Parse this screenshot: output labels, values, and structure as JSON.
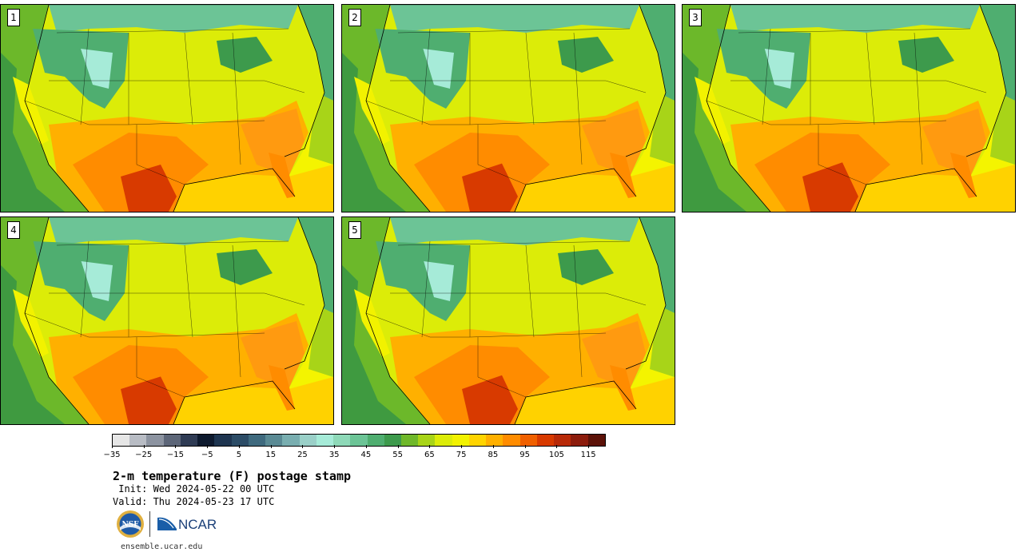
{
  "panels": [
    {
      "label": "1",
      "variant": 0.0
    },
    {
      "label": "2",
      "variant": 0.35
    },
    {
      "label": "3",
      "variant": 0.7
    },
    {
      "label": "4",
      "variant": 0.15
    },
    {
      "label": "5",
      "variant": 0.55
    }
  ],
  "colorbar": {
    "colors": [
      "#e6e6e6",
      "#b8bcc4",
      "#8c93a0",
      "#5d6678",
      "#2f3b54",
      "#0e1a2e",
      "#1e3550",
      "#2c4c66",
      "#3f6a7e",
      "#5a8a94",
      "#79aeb0",
      "#9ad0c8",
      "#a6ebd8",
      "#8ed9b8",
      "#6cc496",
      "#4fae70",
      "#3d9a4c",
      "#6fb82a",
      "#a8d418",
      "#dcec08",
      "#f2f200",
      "#ffd400",
      "#ffb000",
      "#ff8c00",
      "#f06000",
      "#d83a00",
      "#b82a08",
      "#8c1c0c",
      "#5c1208"
    ],
    "ticks": [
      "−35",
      "−25",
      "−15",
      "−5",
      "5",
      "15",
      "25",
      "35",
      "45",
      "55",
      "65",
      "75",
      "85",
      "95",
      "105",
      "115"
    ]
  },
  "title": "2-m temperature (F) postage stamp",
  "init": " Init: Wed 2024-05-22 00 UTC",
  "valid": "Valid: Thu 2024-05-23 17 UTC",
  "logos": {
    "nsf": "NSF",
    "ncar": "NCAR"
  },
  "site": "ensemble.ucar.edu"
}
